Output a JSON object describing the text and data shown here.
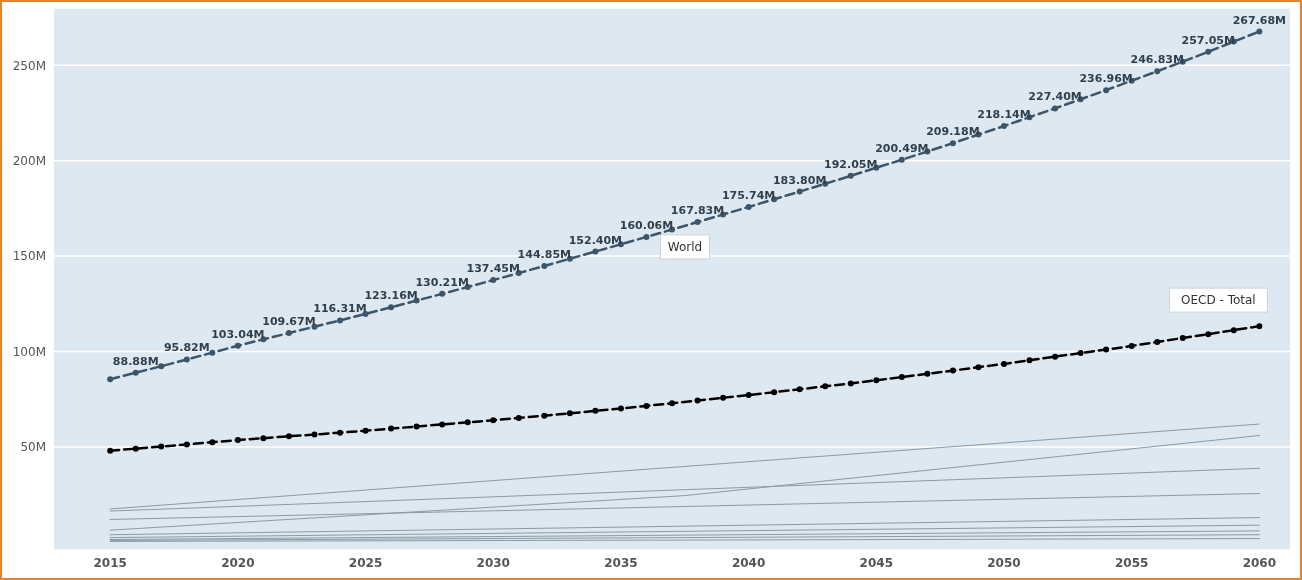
{
  "chart_data": {
    "type": "line",
    "x": [
      2015,
      2016,
      2017,
      2018,
      2019,
      2020,
      2021,
      2022,
      2023,
      2024,
      2025,
      2026,
      2027,
      2028,
      2029,
      2030,
      2031,
      2032,
      2033,
      2034,
      2035,
      2036,
      2037,
      2038,
      2039,
      2040,
      2041,
      2042,
      2043,
      2044,
      2045,
      2046,
      2047,
      2048,
      2049,
      2050,
      2051,
      2052,
      2053,
      2054,
      2055,
      2056,
      2057,
      2058,
      2059,
      2060
    ],
    "series": [
      {
        "name": "World",
        "color": "#3d5568",
        "marker": "circle",
        "line_style": "dashed",
        "values": [
          85.5,
          88.88,
          92.3,
          95.82,
          99.4,
          103.04,
          106.4,
          109.67,
          113.0,
          116.31,
          119.7,
          123.16,
          126.7,
          130.21,
          133.8,
          137.45,
          141.1,
          144.85,
          148.6,
          152.4,
          156.2,
          160.06,
          163.9,
          167.83,
          171.8,
          175.74,
          179.8,
          183.8,
          187.9,
          192.05,
          196.3,
          200.49,
          204.8,
          209.18,
          213.7,
          218.14,
          222.8,
          227.4,
          232.2,
          236.96,
          241.9,
          246.83,
          251.9,
          257.05,
          262.4,
          267.68
        ],
        "value_labels": [
          null,
          "88.88M",
          null,
          "95.82M",
          null,
          "103.04M",
          null,
          "109.67M",
          null,
          "116.31M",
          null,
          "123.16M",
          null,
          "130.21M",
          null,
          "137.45M",
          null,
          "144.85M",
          null,
          "152.40M",
          null,
          "160.06M",
          null,
          "167.83M",
          null,
          "175.74M",
          null,
          "183.80M",
          null,
          "192.05M",
          null,
          "200.49M",
          null,
          "209.18M",
          null,
          "218.14M",
          null,
          "227.40M",
          null,
          "236.96M",
          null,
          "246.83M",
          null,
          "257.05M",
          null,
          "267.68M"
        ]
      },
      {
        "name": "OECD - Total",
        "color": "#000000",
        "marker": "circle",
        "line_style": "dashed",
        "values": [
          48.0,
          49.1,
          50.2,
          51.3,
          52.5,
          53.6,
          54.6,
          55.6,
          56.5,
          57.5,
          58.5,
          59.6,
          60.7,
          61.8,
          62.9,
          64.0,
          65.2,
          66.4,
          67.6,
          68.9,
          70.1,
          71.5,
          72.9,
          74.3,
          75.8,
          77.2,
          78.7,
          80.2,
          81.8,
          83.3,
          84.9,
          86.6,
          88.3,
          90.0,
          91.8,
          93.5,
          95.4,
          97.3,
          99.2,
          101.0,
          102.9,
          105.0,
          107.1,
          109.1,
          111.2,
          113.3
        ]
      },
      {
        "color": "#8a9aa6",
        "marker": "none",
        "line_style": "solid",
        "x": [
          2015,
          2037.5,
          2060
        ],
        "values": [
          17.5,
          39.8,
          62
        ]
      },
      {
        "color": "#8a9aa6",
        "marker": "none",
        "line_style": "solid",
        "x": [
          2015,
          2037.5,
          2060
        ],
        "values": [
          6.4,
          24.5,
          56
        ]
      },
      {
        "color": "#8a9aa6",
        "marker": "none",
        "line_style": "solid",
        "x": [
          2015,
          2037.5,
          2060
        ],
        "values": [
          16.4,
          27.6,
          38.8
        ]
      },
      {
        "color": "#8a9aa6",
        "marker": "none",
        "line_style": "solid",
        "x": [
          2015,
          2037.5,
          2060
        ],
        "values": [
          12,
          18.8,
          25.6
        ]
      },
      {
        "color": "#8a9aa6",
        "marker": "none",
        "line_style": "solid",
        "x": [
          2015,
          2037.5,
          2060
        ],
        "values": [
          4,
          8.5,
          13
        ]
      },
      {
        "color": "#8a9aa6",
        "marker": "none",
        "line_style": "solid",
        "x": [
          2015,
          2037.5,
          2060
        ],
        "values": [
          2.5,
          5.8,
          9
        ]
      },
      {
        "color": "#8a9aa6",
        "marker": "none",
        "line_style": "solid",
        "x": [
          2015,
          2037.5,
          2060
        ],
        "values": [
          1.5,
          3.8,
          6
        ]
      },
      {
        "color": "#8a9aa6",
        "marker": "none",
        "line_style": "solid",
        "x": [
          2015,
          2037.5,
          2060
        ],
        "values": [
          1,
          2.5,
          4
        ]
      },
      {
        "color": "#8a9aa6",
        "marker": "none",
        "line_style": "solid",
        "x": [
          2015,
          2037.5,
          2060
        ],
        "values": [
          0.5,
          1.2,
          2
        ]
      }
    ],
    "xlim": [
      2012.8,
      2061.2
    ],
    "xticks": [
      2015,
      2020,
      2025,
      2030,
      2035,
      2040,
      2045,
      2050,
      2055,
      2060
    ],
    "ylim": [
      -4,
      280
    ],
    "yticks": [
      {
        "value": 50,
        "label": "50M"
      },
      {
        "value": 100,
        "label": "100M"
      },
      {
        "value": 150,
        "label": "150M"
      },
      {
        "value": 200,
        "label": "200M"
      },
      {
        "value": 250,
        "label": "250M"
      }
    ],
    "grid": "y",
    "legend": false
  }
}
